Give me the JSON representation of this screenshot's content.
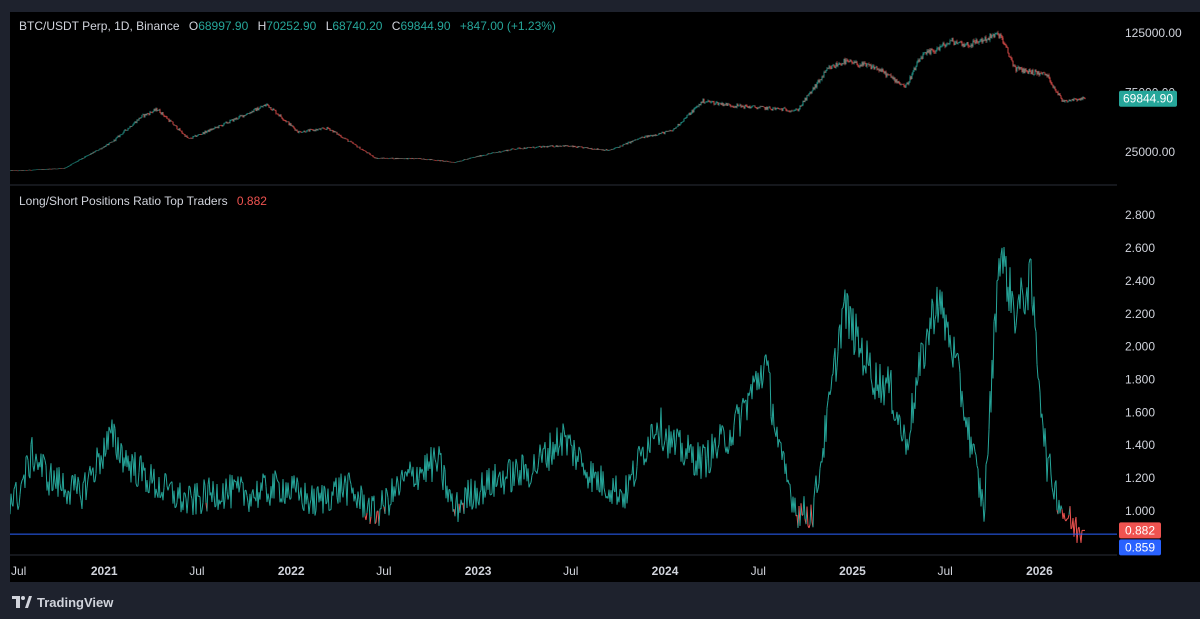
{
  "price_pane": {
    "symbol": "BTC/USDT Perp, 1D, Binance",
    "ohlc": [
      {
        "key": "O",
        "value": "68997.90"
      },
      {
        "key": "H",
        "value": "70252.90"
      },
      {
        "key": "L",
        "value": "68740.20"
      },
      {
        "key": "C",
        "value": "69844.90"
      }
    ],
    "change": "+847.00 (+1.23%)",
    "last_price_tag": "69844.90",
    "axis_ticks": [
      "125000.00",
      "75000.00",
      "25000.00"
    ]
  },
  "ratio_pane": {
    "title": "Long/Short Positions Ratio Top Traders",
    "last_value": "0.882",
    "last_value_tag": "0.882",
    "reference_tag": "0.859",
    "axis_ticks": [
      "2.800",
      "2.600",
      "2.400",
      "2.200",
      "2.000",
      "1.800",
      "1.600",
      "1.400",
      "1.200",
      "1.000"
    ]
  },
  "time_axis": [
    "Jul",
    "2021",
    "Jul",
    "2022",
    "Jul",
    "2023",
    "Jul",
    "2024",
    "Jul",
    "2025",
    "Jul",
    "2026"
  ],
  "branding": {
    "name": "TradingView"
  },
  "colors": {
    "up": "#26a69a",
    "down": "#ef5350",
    "reference": "#2962ff",
    "text": "#d1d4dc",
    "grid": "#2a2e39"
  },
  "chart_data": [
    {
      "type": "line",
      "title": "BTC/USDT Perp, 1D, Binance",
      "x": [
        "2020-07",
        "2020-10",
        "2021-01",
        "2021-03",
        "2021-04",
        "2021-06",
        "2021-08",
        "2021-11",
        "2022-01",
        "2022-03",
        "2022-06",
        "2022-09",
        "2022-11",
        "2023-01",
        "2023-03",
        "2023-06",
        "2023-09",
        "2023-11",
        "2024-01",
        "2024-03",
        "2024-05",
        "2024-07",
        "2024-09",
        "2024-11",
        "2024-12",
        "2025-02",
        "2025-04",
        "2025-05",
        "2025-07",
        "2025-08",
        "2025-10",
        "2025-11",
        "2026-01",
        "2026-02",
        "2026-03"
      ],
      "series": [
        {
          "values": [
            9500,
            11500,
            33000,
            55000,
            61000,
            36000,
            47000,
            65000,
            42000,
            45000,
            20000,
            19500,
            16500,
            23000,
            28000,
            30500,
            26500,
            37000,
            43000,
            68000,
            64000,
            62000,
            60000,
            95000,
            101000,
            96000,
            80000,
            105000,
            118000,
            115000,
            124000,
            95000,
            90000,
            68000,
            69844.9
          ]
        }
      ],
      "ylim": [
        0,
        130000
      ],
      "yticks": [
        125000,
        75000,
        25000
      ]
    },
    {
      "type": "line",
      "title": "Long/Short Positions Ratio Top Traders",
      "x": [
        "2020-07",
        "2020-08",
        "2020-09",
        "2020-11",
        "2021-01",
        "2021-02",
        "2021-04",
        "2021-06",
        "2021-08",
        "2021-10",
        "2021-12",
        "2022-02",
        "2022-04",
        "2022-06",
        "2022-08",
        "2022-10",
        "2022-11",
        "2022-12",
        "2023-02",
        "2023-04",
        "2023-06",
        "2023-08",
        "2023-10",
        "2023-12",
        "2024-01",
        "2024-03",
        "2024-05",
        "2024-07",
        "2024-08",
        "2024-09",
        "2024-10",
        "2024-11",
        "2024-12",
        "2025-01",
        "2025-02",
        "2025-03",
        "2025-04",
        "2025-05",
        "2025-06",
        "2025-07",
        "2025-08",
        "2025-09",
        "2025-10",
        "2025-11",
        "2025-12",
        "2026-01",
        "2026-02",
        "2026-03"
      ],
      "series": [
        {
          "values": [
            1.08,
            1.35,
            1.2,
            1.1,
            1.45,
            1.3,
            1.15,
            1.05,
            1.12,
            1.1,
            1.15,
            1.05,
            1.15,
            0.98,
            1.2,
            1.3,
            1.0,
            1.1,
            1.2,
            1.25,
            1.45,
            1.2,
            1.1,
            1.55,
            1.4,
            1.3,
            1.5,
            1.9,
            1.3,
            1.0,
            0.98,
            1.6,
            2.25,
            2.0,
            1.8,
            1.75,
            1.4,
            1.9,
            2.3,
            2.0,
            1.5,
            1.0,
            2.6,
            2.2,
            2.4,
            1.3,
            1.0,
            0.882
          ]
        }
      ],
      "ylim": [
        0.75,
        2.85
      ],
      "yticks": [
        2.8,
        2.6,
        2.4,
        2.2,
        2.0,
        1.8,
        1.6,
        1.4,
        1.2,
        1.0
      ],
      "reference_line": 0.859
    }
  ]
}
